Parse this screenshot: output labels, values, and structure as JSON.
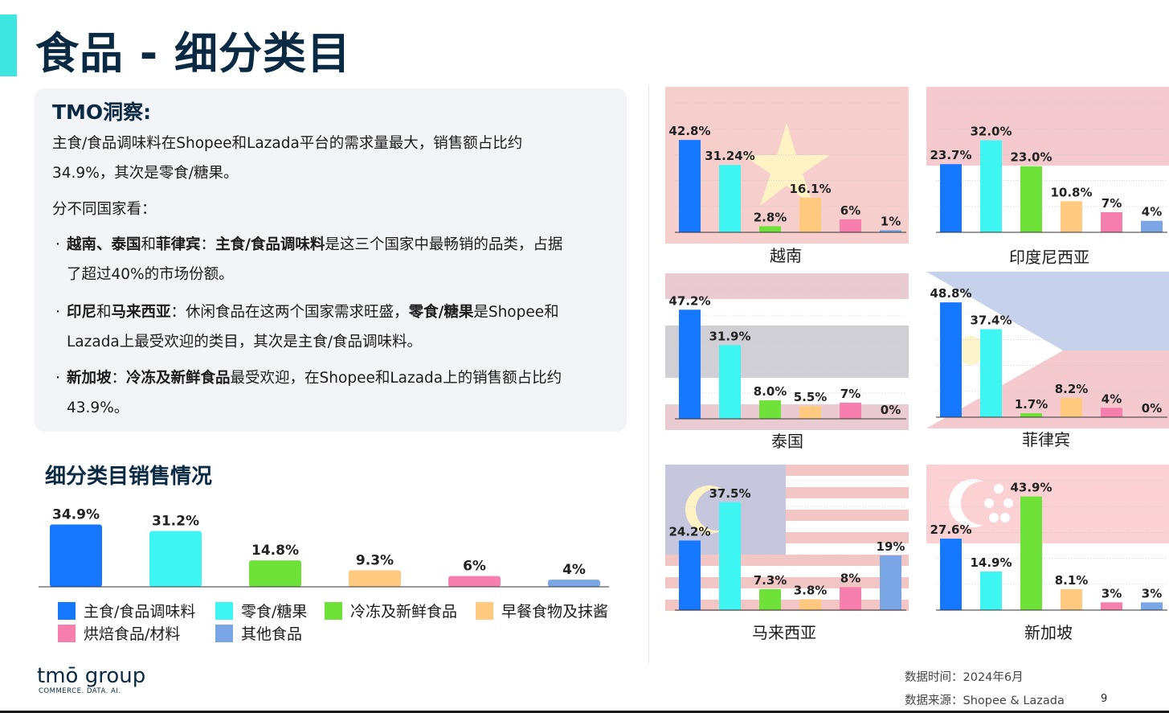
{
  "page": {
    "title": "食品 - 细分类目",
    "section_title": "细分类目销售情况",
    "page_number": "9",
    "logo": {
      "wordmark": "tmō group",
      "tagline": "COMMERCE. DATA. AI."
    },
    "source": {
      "date": "数据时间：2024年6月",
      "source": "数据来源：Shopee & Lazada"
    }
  },
  "insight": {
    "title": "TMO洞察:",
    "p1_line1": "主食/食品调味料在Shopee和Lazada平台的需求量最大，销售额占比约",
    "p1_line2": "34.9%，其次是零食/糖果。",
    "p2": "分不同国家看：",
    "bullet_dot": "·",
    "b1_bold1": "越南、泰国",
    "b1_t1": "和",
    "b1_bold2": "菲律宾",
    "b1_t2": "：",
    "b1_bold3": "主食/食品调味料",
    "b1_t3": "是这三个国家中最畅销的品类，占据",
    "b1_line2": "了超过40%的市场份额。",
    "b2_bold1": "印尼",
    "b2_t1": "和",
    "b2_bold2": "马来西亚",
    "b2_t2": "：休闲食品在这两个国家需求旺盛，",
    "b2_bold3": "零食/糖果",
    "b2_t3": "是Shopee和",
    "b2_line2": "Lazada上最受欢迎的类目，其次是主食/食品调味料。",
    "b3_bold1": "新加坡",
    "b3_t1": "：",
    "b3_bold2": "冷冻及新鲜食品",
    "b3_t2": "最受欢迎，在Shopee和Lazada上的销售额占比约",
    "b3_line2": "43.9%。"
  },
  "colors": {
    "staple": "#1677ff",
    "snacks": "#3ff5f2",
    "frozen": "#6fe23a",
    "breakfast": "#ffc980",
    "bakery": "#f77fae",
    "other": "#7aa6e6",
    "title": "#0a2a43"
  },
  "legend": [
    {
      "label": "主食/食品调味料",
      "color": "#1677ff"
    },
    {
      "label": "零食/糖果",
      "color": "#3ff5f2"
    },
    {
      "label": "冷冻及新鲜食品",
      "color": "#6fe23a"
    },
    {
      "label": "早餐食物及抹酱",
      "color": "#ffc980"
    },
    {
      "label": "烘焙食品/材料",
      "color": "#f77fae"
    },
    {
      "label": "其他食品",
      "color": "#7aa6e6"
    }
  ],
  "chart_data": [
    {
      "type": "bar",
      "name": "overall",
      "categories": [
        "主食/食品调味料",
        "零食/糖果",
        "冷冻及新鲜食品",
        "早餐食物及抹酱",
        "烘焙食品/材料",
        "其他食品"
      ],
      "values": [
        34.9,
        31.2,
        14.8,
        9.3,
        6,
        4
      ],
      "labels": [
        "34.9%",
        "31.2%",
        "14.8%",
        "9.3%",
        "6%",
        "4%"
      ],
      "ylim": [
        0,
        36
      ],
      "grid": false
    },
    {
      "type": "bar",
      "title": "越南",
      "flag": "vietnam",
      "categories": [
        "主食/食品调味料",
        "零食/糖果",
        "冷冻及新鲜食品",
        "早餐食物及抹酱",
        "烘焙食品/材料",
        "其他食品"
      ],
      "values": [
        42.8,
        31.24,
        2.8,
        16.1,
        6,
        1
      ],
      "labels": [
        "42.8%",
        "31.24%",
        "2.8%",
        "16.1%",
        "6%",
        "1%"
      ],
      "ylim": [
        0,
        60
      ],
      "grid": true
    },
    {
      "type": "bar",
      "title": "印度尼西亚",
      "flag": "indonesia",
      "categories": [
        "主食/食品调味料",
        "零食/糖果",
        "冷冻及新鲜食品",
        "早餐食物及抹酱",
        "烘焙食品/材料",
        "其他食品"
      ],
      "values": [
        23.7,
        32.0,
        23.0,
        10.8,
        7,
        4
      ],
      "labels": [
        "23.7%",
        "32.0%",
        "23.0%",
        "10.8%",
        "7%",
        "4%"
      ],
      "ylim": [
        0,
        45
      ],
      "grid": true
    },
    {
      "type": "bar",
      "title": "泰国",
      "flag": "thailand",
      "categories": [
        "主食/食品调味料",
        "零食/糖果",
        "冷冻及新鲜食品",
        "早餐食物及抹酱",
        "烘焙食品/材料",
        "其他食品"
      ],
      "values": [
        47.2,
        31.9,
        8.0,
        5.5,
        7,
        0
      ],
      "labels": [
        "47.2%",
        "31.9%",
        "8.0%",
        "5.5%",
        "7%",
        "0%"
      ],
      "ylim": [
        0,
        56
      ],
      "grid": true
    },
    {
      "type": "bar",
      "title": "菲律宾",
      "flag": "philippines",
      "categories": [
        "主食/食品调味料",
        "零食/糖果",
        "冷冻及新鲜食品",
        "早餐食物及抹酱",
        "烘焙食品/材料",
        "其他食品"
      ],
      "values": [
        48.8,
        37.4,
        1.7,
        8.2,
        4,
        0
      ],
      "labels": [
        "48.8%",
        "37.4%",
        "1.7%",
        "8.2%",
        "4%",
        "0%"
      ],
      "ylim": [
        0,
        55
      ],
      "grid": true
    },
    {
      "type": "bar",
      "title": "马来西亚",
      "flag": "malaysia",
      "categories": [
        "主食/食品调味料",
        "零食/糖果",
        "冷冻及新鲜食品",
        "早餐食物及抹酱",
        "烘焙食品/材料",
        "其他食品"
      ],
      "values": [
        24.2,
        37.5,
        7.3,
        3.8,
        8,
        19
      ],
      "labels": [
        "24.2%",
        "37.5%",
        "7.3%",
        "3.8%",
        "8%",
        "19%"
      ],
      "ylim": [
        0,
        45
      ],
      "grid": true
    },
    {
      "type": "bar",
      "title": "新加坡",
      "flag": "singapore",
      "categories": [
        "主食/食品调味料",
        "零食/糖果",
        "冷冻及新鲜食品",
        "早餐食物及抹酱",
        "烘焙食品/材料",
        "其他食品"
      ],
      "values": [
        27.6,
        14.9,
        43.9,
        8.1,
        3,
        3
      ],
      "labels": [
        "27.6%",
        "14.9%",
        "43.9%",
        "8.1%",
        "3%",
        "3%"
      ],
      "ylim": [
        0,
        50
      ],
      "grid": true
    }
  ]
}
